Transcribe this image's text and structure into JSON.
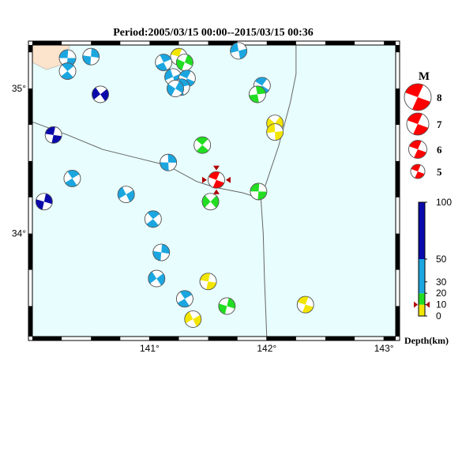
{
  "title": "Period:2005/03/15 00:00--2015/03/15 00:36",
  "axes": {
    "x_ticks": [
      {
        "value": 141,
        "label": "141°"
      },
      {
        "value": 142,
        "label": "142°"
      },
      {
        "value": 143,
        "label": "143°"
      }
    ],
    "y_ticks": [
      {
        "value": 35,
        "label": "35°"
      },
      {
        "value": 34,
        "label": "34°"
      }
    ],
    "lon_range": [
      140.0,
      143.1
    ],
    "lat_range": [
      33.29,
      35.3
    ]
  },
  "colors": {
    "sea": "#e8fdfd",
    "land": "#fbe3cc",
    "depth_0_10": "#f2e600",
    "depth_10_20": "#22dd22",
    "depth_20_50": "#1ba6e0",
    "depth_50_100": "#0a0aaa",
    "main_event": "#ff0000"
  },
  "magnitude_legend": {
    "title": "M",
    "items": [
      {
        "label": "8",
        "mag": 8
      },
      {
        "label": "7",
        "mag": 7
      },
      {
        "label": "6",
        "mag": 6
      },
      {
        "label": "5",
        "mag": 5
      }
    ]
  },
  "depth_legend": {
    "title": "Depth(km)",
    "ticks": [
      "100",
      "50",
      "30",
      "20",
      "10",
      "0"
    ],
    "marker_depth_km": 10
  },
  "main_event": {
    "lon": 141.57,
    "lat": 34.37,
    "depth_km": 10
  },
  "events": [
    {
      "lon": 140.3,
      "lat": 35.21,
      "depth_km": 25
    },
    {
      "lon": 140.3,
      "lat": 35.12,
      "depth_km": 25
    },
    {
      "lon": 140.5,
      "lat": 35.22,
      "depth_km": 25
    },
    {
      "lon": 140.58,
      "lat": 34.96,
      "depth_km": 80
    },
    {
      "lon": 140.18,
      "lat": 34.68,
      "depth_km": 80
    },
    {
      "lon": 140.34,
      "lat": 34.38,
      "depth_km": 25
    },
    {
      "lon": 140.1,
      "lat": 34.22,
      "depth_km": 80
    },
    {
      "lon": 140.8,
      "lat": 34.27,
      "depth_km": 25
    },
    {
      "lon": 141.25,
      "lat": 35.22,
      "depth_km": 5
    },
    {
      "lon": 141.12,
      "lat": 35.18,
      "depth_km": 25
    },
    {
      "lon": 141.3,
      "lat": 35.18,
      "depth_km": 15
    },
    {
      "lon": 141.2,
      "lat": 35.08,
      "depth_km": 25
    },
    {
      "lon": 141.32,
      "lat": 35.07,
      "depth_km": 25
    },
    {
      "lon": 141.27,
      "lat": 35.01,
      "depth_km": 25
    },
    {
      "lon": 141.22,
      "lat": 35.0,
      "depth_km": 25
    },
    {
      "lon": 141.76,
      "lat": 35.26,
      "depth_km": 25
    },
    {
      "lon": 141.96,
      "lat": 35.02,
      "depth_km": 25
    },
    {
      "lon": 141.92,
      "lat": 34.96,
      "depth_km": 15
    },
    {
      "lon": 142.07,
      "lat": 34.76,
      "depth_km": 5
    },
    {
      "lon": 142.07,
      "lat": 34.7,
      "depth_km": 5
    },
    {
      "lon": 141.45,
      "lat": 34.61,
      "depth_km": 15
    },
    {
      "lon": 141.16,
      "lat": 34.49,
      "depth_km": 25
    },
    {
      "lon": 141.52,
      "lat": 34.22,
      "depth_km": 15
    },
    {
      "lon": 141.93,
      "lat": 34.29,
      "depth_km": 15
    },
    {
      "lon": 141.03,
      "lat": 34.1,
      "depth_km": 25
    },
    {
      "lon": 141.1,
      "lat": 33.87,
      "depth_km": 25
    },
    {
      "lon": 141.06,
      "lat": 33.69,
      "depth_km": 25
    },
    {
      "lon": 141.5,
      "lat": 33.67,
      "depth_km": 5
    },
    {
      "lon": 141.3,
      "lat": 33.55,
      "depth_km": 25
    },
    {
      "lon": 141.66,
      "lat": 33.5,
      "depth_km": 15
    },
    {
      "lon": 141.37,
      "lat": 33.41,
      "depth_km": 5
    },
    {
      "lon": 142.33,
      "lat": 33.51,
      "depth_km": 5
    }
  ],
  "faults": [
    [
      [
        140.0,
        34.77
      ],
      [
        140.3,
        34.68
      ],
      [
        140.6,
        34.58
      ],
      [
        140.9,
        34.52
      ],
      [
        141.15,
        34.47
      ],
      [
        141.4,
        34.36
      ],
      [
        141.55,
        34.32
      ],
      [
        141.8,
        34.28
      ],
      [
        141.95,
        34.24
      ],
      [
        142.1,
        34.6
      ],
      [
        142.2,
        34.9
      ],
      [
        142.25,
        35.1
      ],
      [
        142.25,
        35.3
      ]
    ],
    [
      [
        141.95,
        34.24
      ],
      [
        141.97,
        34.0
      ],
      [
        141.98,
        33.7
      ],
      [
        142.0,
        33.29
      ]
    ]
  ],
  "land": [
    [
      140.0,
      35.3
    ],
    [
      140.32,
      35.3
    ],
    [
      140.27,
      35.17
    ],
    [
      140.12,
      35.13
    ],
    [
      140.0,
      35.18
    ]
  ]
}
